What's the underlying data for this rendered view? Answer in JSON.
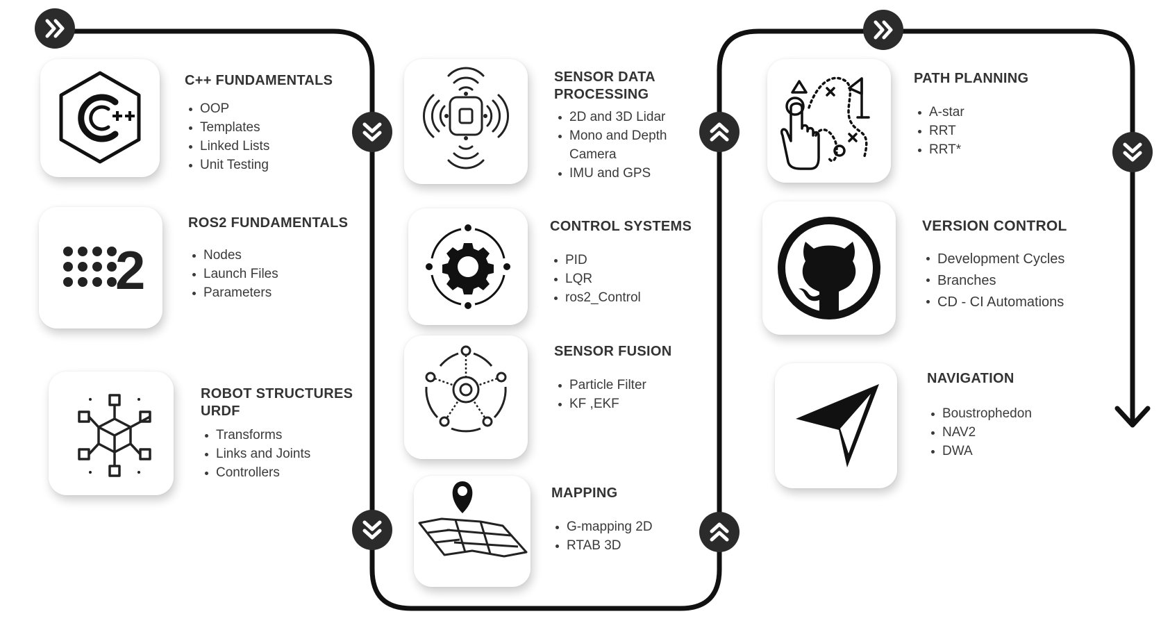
{
  "colors": {
    "line": "#111111",
    "badge": "#2b2b2b",
    "text": "#333333"
  },
  "topics": [
    {
      "id": "cpp",
      "title": "C++ FUNDAMENTALS",
      "icon": "cpp-hexagon-icon",
      "items": [
        "OOP",
        "Templates",
        "Linked Lists",
        "Unit Testing"
      ]
    },
    {
      "id": "ros2",
      "title": "ROS2 FUNDAMENTALS",
      "icon": "ros2-logo-icon",
      "items": [
        "Nodes",
        "Launch Files",
        "Parameters"
      ]
    },
    {
      "id": "urdf",
      "title": "ROBOT STRUCTURES\nURDF",
      "icon": "robot-structure-icon",
      "items": [
        "Transforms",
        "Links and Joints",
        "Controllers"
      ]
    },
    {
      "id": "sensor",
      "title": "SENSOR DATA\nPROCESSING",
      "icon": "sensor-signal-icon",
      "items": [
        "2D and 3D Lidar",
        "Mono and Depth Camera",
        "IMU and GPS"
      ]
    },
    {
      "id": "control",
      "title": "CONTROL SYSTEMS",
      "icon": "gear-cycle-icon",
      "items": [
        "PID",
        "LQR",
        "ros2_Control"
      ]
    },
    {
      "id": "fusion",
      "title": "SENSOR FUSION",
      "icon": "sensor-fusion-icon",
      "items": [
        "Particle Filter",
        "KF ,EKF"
      ]
    },
    {
      "id": "mapping",
      "title": "MAPPING",
      "icon": "map-pin-icon",
      "items": [
        "G-mapping 2D",
        "RTAB 3D"
      ]
    },
    {
      "id": "path",
      "title": "PATH PLANNING",
      "icon": "path-planning-icon",
      "items": [
        "A-star",
        "RRT",
        "RRT*"
      ]
    },
    {
      "id": "vcs",
      "title": "VERSION CONTROL",
      "icon": "github-icon",
      "items": [
        "Development Cycles",
        "Branches",
        "CD - CI Automations"
      ]
    },
    {
      "id": "nav",
      "title": "NAVIGATION",
      "icon": "navigation-arrow-icon",
      "items": [
        "Boustrophedon",
        "NAV2",
        "DWA"
      ]
    }
  ],
  "badges": [
    {
      "id": "start-1",
      "icon": "double-chevron-right-icon"
    },
    {
      "id": "down-1",
      "icon": "double-chevron-down-icon"
    },
    {
      "id": "down-2",
      "icon": "double-chevron-down-icon"
    },
    {
      "id": "up-1",
      "icon": "double-chevron-up-icon"
    },
    {
      "id": "up-2",
      "icon": "double-chevron-up-icon"
    },
    {
      "id": "start-2",
      "icon": "double-chevron-right-icon"
    },
    {
      "id": "down-3",
      "icon": "double-chevron-down-icon"
    }
  ],
  "end_marker": "arrow-down-icon"
}
